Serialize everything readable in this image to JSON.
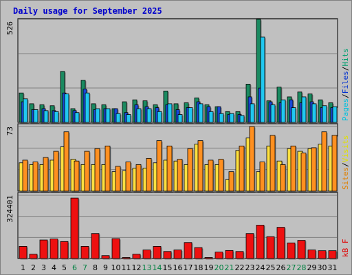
{
  "title": "Daily usage for September 2025",
  "chart_data": [
    {
      "type": "bar",
      "panel": "pages-files-hits",
      "ymax_label": "526",
      "ylim": [
        0,
        526
      ],
      "legend": [
        {
          "label": "Pages",
          "color": "#00c0e0"
        },
        {
          "label": "Files",
          "color": "#0030d0"
        },
        {
          "label": "Hits",
          "color": "#00a070"
        }
      ],
      "categories": [
        "1",
        "2",
        "3",
        "4",
        "5",
        "6",
        "7",
        "8",
        "9",
        "10",
        "11",
        "12",
        "13",
        "14",
        "15",
        "16",
        "17",
        "18",
        "19",
        "20",
        "21",
        "22",
        "23",
        "24",
        "25",
        "26",
        "27",
        "28",
        "29",
        "30",
        "31"
      ],
      "series": [
        {
          "name": "Hits",
          "color": "#1a8a60",
          "values": [
            150,
            95,
            90,
            85,
            260,
            70,
            215,
            95,
            90,
            70,
            105,
            115,
            110,
            90,
            160,
            95,
            100,
            125,
            90,
            80,
            55,
            55,
            195,
            526,
            110,
            180,
            130,
            155,
            145,
            115,
            100
          ]
        },
        {
          "name": "Files",
          "color": "#1848d8",
          "values": [
            105,
            65,
            70,
            60,
            150,
            60,
            170,
            65,
            70,
            70,
            50,
            90,
            80,
            75,
            90,
            65,
            75,
            105,
            80,
            80,
            40,
            40,
            130,
            175,
            105,
            100,
            115,
            100,
            105,
            75,
            75
          ]
        },
        {
          "name": "Pages",
          "color": "#20c8f0",
          "values": [
            120,
            65,
            60,
            55,
            145,
            50,
            150,
            70,
            70,
            45,
            40,
            70,
            70,
            55,
            95,
            40,
            75,
            95,
            55,
            45,
            45,
            35,
            95,
            435,
            90,
            115,
            75,
            130,
            95,
            85,
            80
          ]
        }
      ]
    },
    {
      "type": "bar",
      "panel": "sites-visits",
      "ymax_label": "73",
      "ylim": [
        0,
        73
      ],
      "legend": [
        {
          "label": "Sites",
          "color": "#e08000"
        },
        {
          "label": "Visits",
          "color": "#e0e000"
        }
      ],
      "categories": [
        "1",
        "2",
        "3",
        "4",
        "5",
        "6",
        "7",
        "8",
        "9",
        "10",
        "11",
        "12",
        "13",
        "14",
        "15",
        "16",
        "17",
        "18",
        "19",
        "20",
        "21",
        "22",
        "23",
        "24",
        "25",
        "26",
        "27",
        "28",
        "29",
        "30",
        "31"
      ],
      "series": [
        {
          "name": "Visits",
          "color": "#ffe040",
          "values": [
            32,
            30,
            30,
            35,
            50,
            36,
            30,
            30,
            30,
            22,
            23,
            26,
            26,
            32,
            35,
            34,
            30,
            53,
            30,
            30,
            13,
            46,
            60,
            22,
            51,
            34,
            48,
            45,
            48,
            53,
            51
          ]
        },
        {
          "name": "Sites",
          "color": "#ff9020",
          "values": [
            35,
            33,
            38,
            45,
            67,
            34,
            45,
            48,
            51,
            28,
            33,
            30,
            37,
            57,
            51,
            36,
            48,
            57,
            35,
            36,
            22,
            51,
            73,
            33,
            63,
            30,
            51,
            43,
            49,
            67,
            63
          ]
        }
      ]
    },
    {
      "type": "bar",
      "panel": "kbytes",
      "ymax_label": "324401",
      "ylim": [
        0,
        324401
      ],
      "legend": [
        {
          "label": "kB F",
          "color": "#e00000"
        }
      ],
      "categories": [
        "1",
        "2",
        "3",
        "4",
        "5",
        "6",
        "7",
        "8",
        "9",
        "10",
        "11",
        "12",
        "13",
        "14",
        "15",
        "16",
        "17",
        "18",
        "19",
        "20",
        "21",
        "22",
        "23",
        "24",
        "25",
        "26",
        "27",
        "28",
        "29",
        "30",
        "31"
      ],
      "series": [
        {
          "name": "kB F",
          "color": "#ee1010",
          "values": [
            62000,
            22000,
            95000,
            100000,
            87000,
            310000,
            62000,
            128000,
            15000,
            102000,
            4000,
            22000,
            44000,
            62000,
            36000,
            44000,
            82000,
            56000,
            4000,
            33000,
            41000,
            36000,
            128000,
            171000,
            112000,
            160000,
            80000,
            93000,
            44000,
            40000,
            40000
          ]
        }
      ]
    }
  ],
  "x_label_colors": {
    "weekday": "#000000",
    "weekend": "#008040"
  },
  "weekend_days": [
    "6",
    "7",
    "13",
    "14",
    "20",
    "21",
    "27",
    "28"
  ]
}
